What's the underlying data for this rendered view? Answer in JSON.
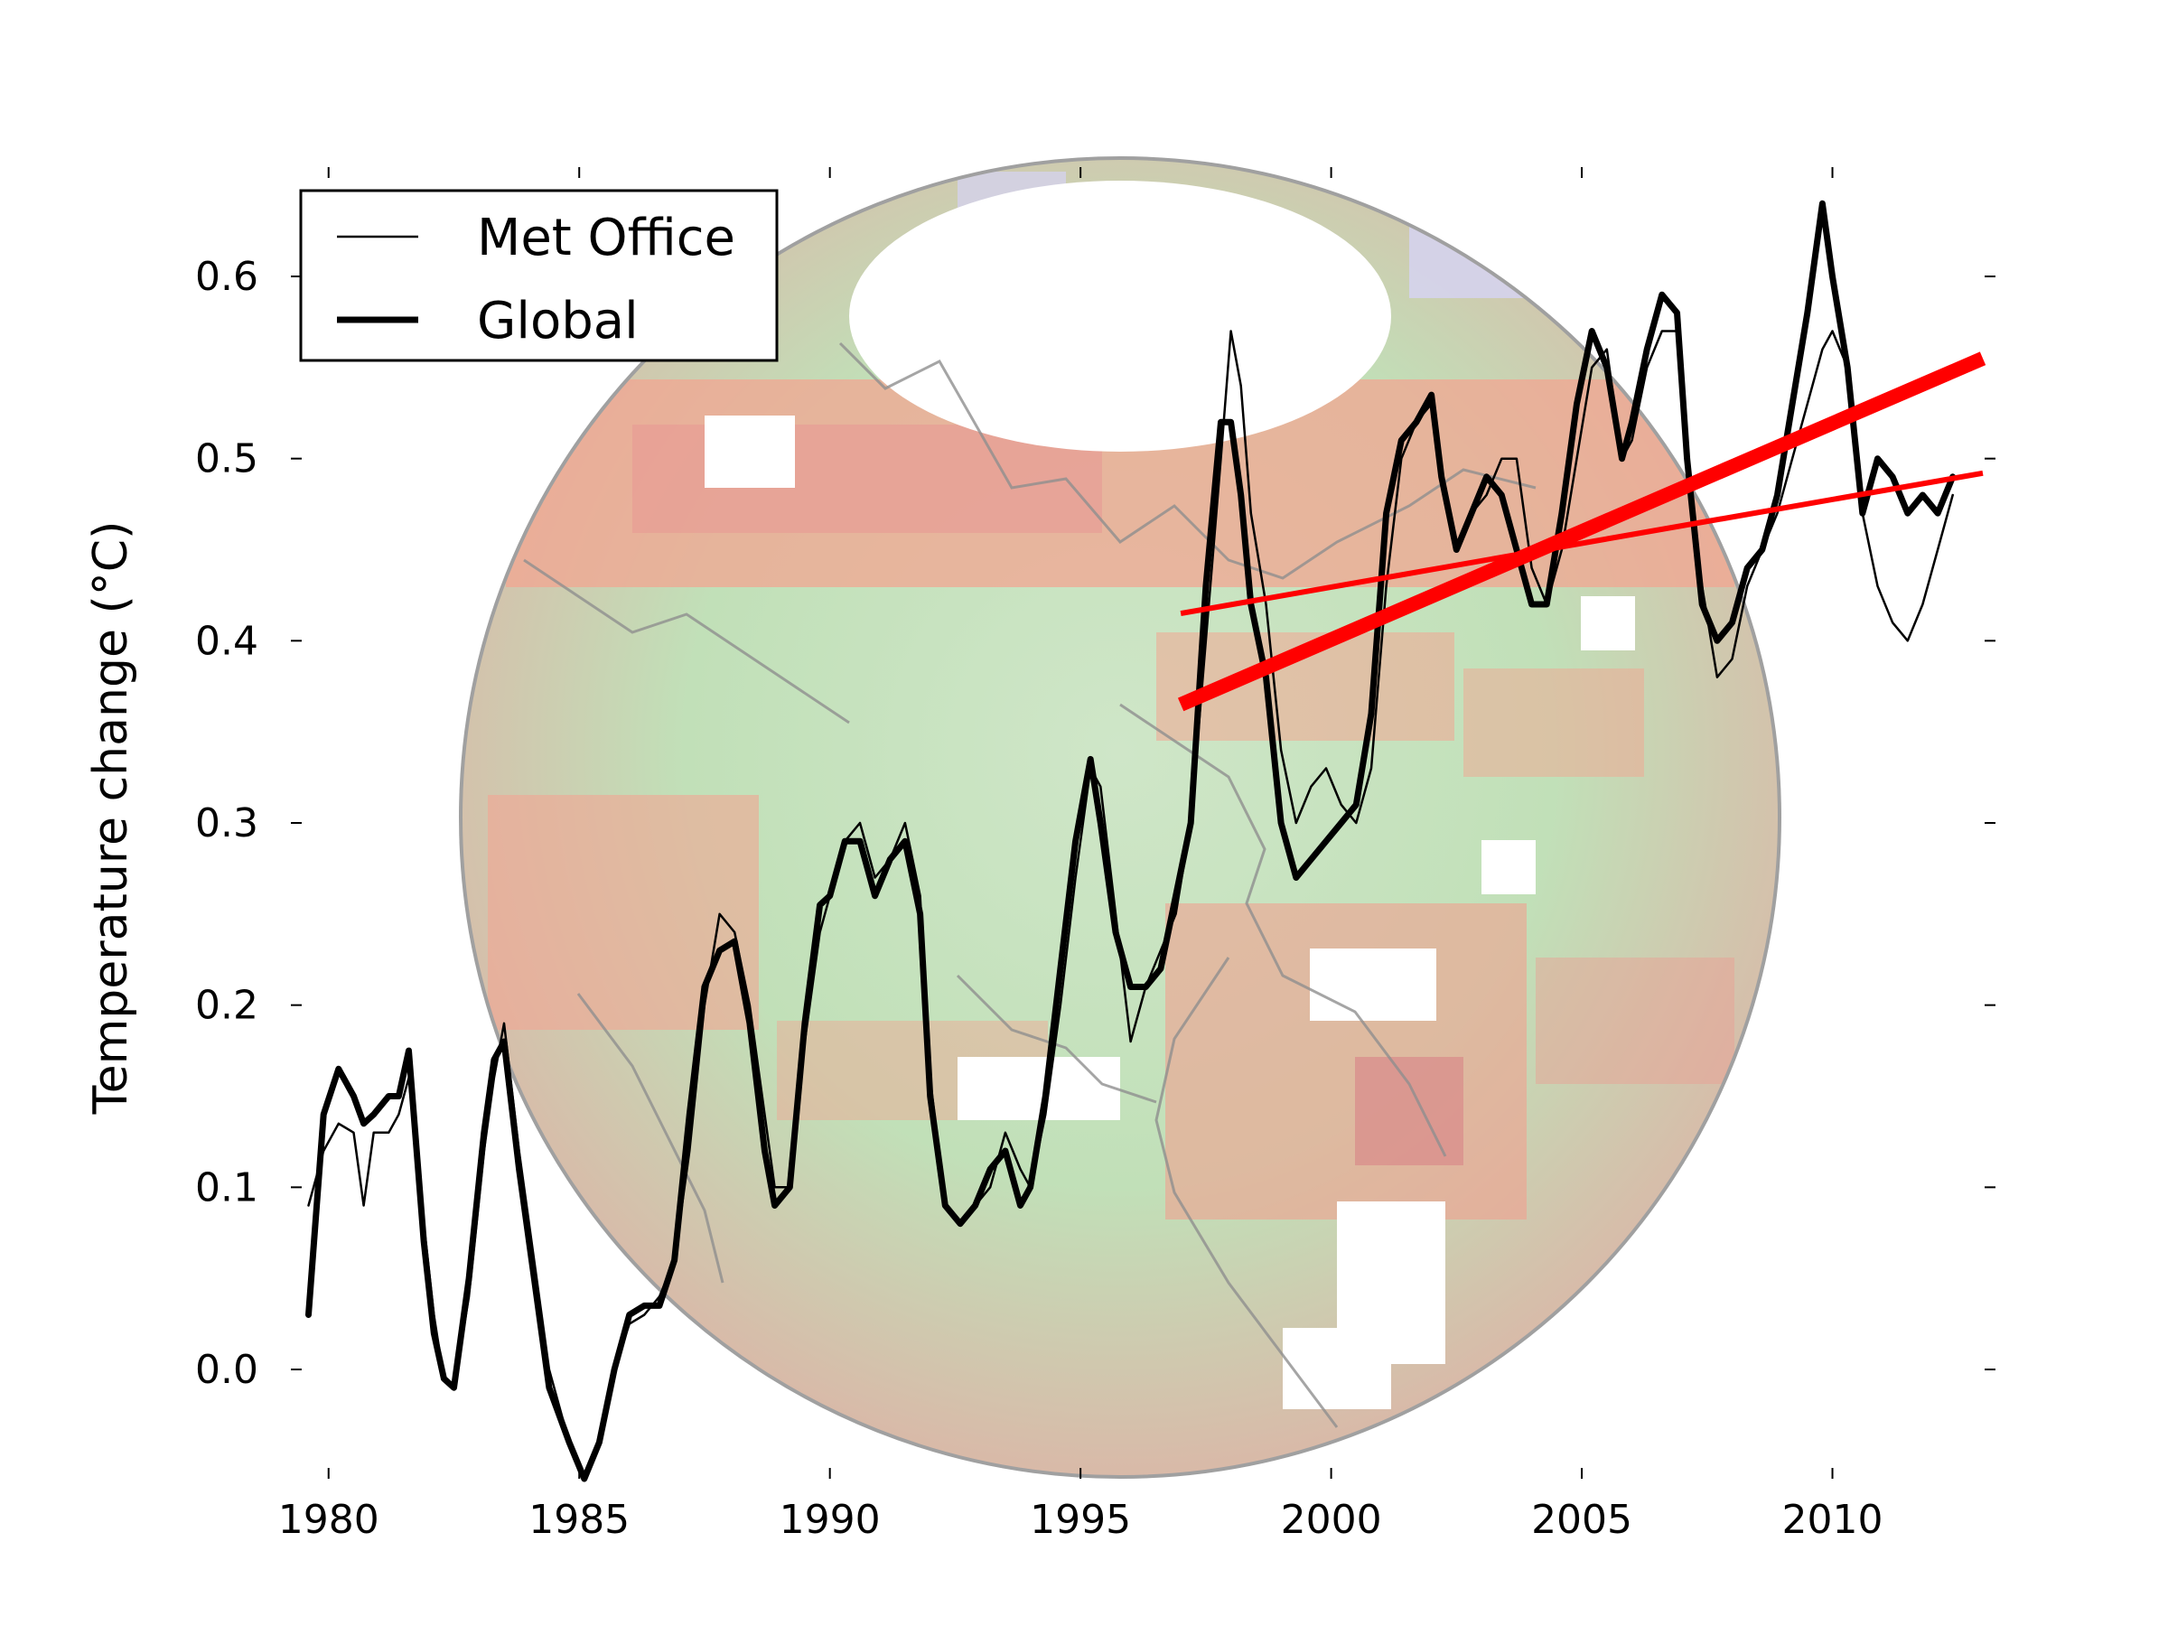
{
  "chart_data": {
    "type": "line",
    "title": "",
    "xlabel": "",
    "ylabel": "Temperature change (°C)",
    "xlim": [
      1979.5,
      2013.0
    ],
    "ylim": [
      -0.06,
      0.66
    ],
    "xticks": [
      1980,
      1985,
      1990,
      1995,
      2000,
      2005,
      2010
    ],
    "yticks": [
      0.0,
      0.1,
      0.2,
      0.3,
      0.4,
      0.5,
      0.6
    ],
    "ytick_labels": [
      "0.0",
      "0.1",
      "0.2",
      "0.3",
      "0.4",
      "0.5",
      "0.6"
    ],
    "legend": {
      "placement": "top-left",
      "entries": [
        "Met Office",
        "Global"
      ]
    },
    "background": "globe map of temperature anomalies (red = warmer, green = cooler)",
    "series": [
      {
        "name": "Met Office",
        "style": "thin",
        "color": "#000000",
        "x": [
          1979.6,
          1979.9,
          1980.2,
          1980.5,
          1980.7,
          1980.9,
          1981.2,
          1981.4,
          1981.6,
          1981.9,
          1982.1,
          1982.3,
          1982.5,
          1982.8,
          1983.1,
          1983.3,
          1983.5,
          1983.8,
          1984.1,
          1984.4,
          1984.8,
          1985.1,
          1985.4,
          1985.7,
          1986.0,
          1986.3,
          1986.6,
          1986.9,
          1987.2,
          1987.5,
          1987.8,
          1988.1,
          1988.4,
          1988.7,
          1988.9,
          1989.2,
          1989.5,
          1989.8,
          1990.0,
          1990.3,
          1990.6,
          1990.9,
          1991.2,
          1991.5,
          1991.8,
          1992.0,
          1992.3,
          1992.6,
          1992.9,
          1993.2,
          1993.5,
          1993.8,
          1994.0,
          1994.3,
          1994.6,
          1994.9,
          1995.2,
          1995.4,
          1995.7,
          1996.0,
          1996.3,
          1996.6,
          1996.9,
          1997.2,
          1997.5,
          1997.8,
          1998.0,
          1998.2,
          1998.4,
          1998.7,
          1999.0,
          1999.3,
          1999.6,
          1999.9,
          2000.2,
          2000.5,
          2000.8,
          2001.1,
          2001.4,
          2001.7,
          2002.0,
          2002.2,
          2002.5,
          2002.8,
          2003.1,
          2003.4,
          2003.7,
          2004.0,
          2004.3,
          2004.6,
          2004.9,
          2005.2,
          2005.5,
          2005.8,
          2006.0,
          2006.3,
          2006.6,
          2006.9,
          2007.1,
          2007.4,
          2007.7,
          2008.0,
          2008.3,
          2008.6,
          2008.9,
          2009.2,
          2009.5,
          2009.8,
          2010.0,
          2010.3,
          2010.6,
          2010.9,
          2011.2,
          2011.5,
          2011.8,
          2012.1,
          2012.4
        ],
        "y": [
          0.09,
          0.12,
          0.135,
          0.13,
          0.09,
          0.13,
          0.13,
          0.14,
          0.16,
          0.08,
          0.03,
          -0.005,
          -0.01,
          0.04,
          0.12,
          0.16,
          0.19,
          0.12,
          0.06,
          0.0,
          -0.04,
          -0.06,
          -0.04,
          0.0,
          0.025,
          0.03,
          0.04,
          0.06,
          0.12,
          0.2,
          0.25,
          0.24,
          0.2,
          0.14,
          0.1,
          0.1,
          0.18,
          0.24,
          0.26,
          0.29,
          0.3,
          0.27,
          0.28,
          0.3,
          0.26,
          0.16,
          0.09,
          0.08,
          0.09,
          0.1,
          0.13,
          0.11,
          0.1,
          0.14,
          0.2,
          0.27,
          0.33,
          0.32,
          0.25,
          0.18,
          0.21,
          0.23,
          0.25,
          0.3,
          0.4,
          0.5,
          0.57,
          0.54,
          0.47,
          0.42,
          0.34,
          0.3,
          0.32,
          0.33,
          0.31,
          0.3,
          0.33,
          0.43,
          0.5,
          0.52,
          0.53,
          0.49,
          0.45,
          0.47,
          0.48,
          0.5,
          0.5,
          0.44,
          0.42,
          0.45,
          0.5,
          0.55,
          0.56,
          0.5,
          0.51,
          0.55,
          0.57,
          0.57,
          0.5,
          0.43,
          0.38,
          0.39,
          0.43,
          0.45,
          0.47,
          0.5,
          0.53,
          0.56,
          0.57,
          0.55,
          0.47,
          0.43,
          0.41,
          0.4,
          0.42,
          0.45,
          0.48
        ]
      },
      {
        "name": "Global",
        "style": "thick",
        "color": "#000000",
        "x": [
          1979.6,
          1979.9,
          1980.2,
          1980.5,
          1980.7,
          1980.9,
          1981.2,
          1981.4,
          1981.6,
          1981.9,
          1982.1,
          1982.3,
          1982.5,
          1982.8,
          1983.1,
          1983.3,
          1983.5,
          1983.8,
          1984.1,
          1984.4,
          1984.8,
          1985.1,
          1985.4,
          1985.7,
          1986.0,
          1986.3,
          1986.6,
          1986.9,
          1987.2,
          1987.5,
          1987.8,
          1988.1,
          1988.4,
          1988.7,
          1988.9,
          1989.2,
          1989.5,
          1989.8,
          1990.0,
          1990.3,
          1990.6,
          1990.9,
          1991.2,
          1991.5,
          1991.8,
          1992.0,
          1992.3,
          1992.6,
          1992.9,
          1993.2,
          1993.5,
          1993.8,
          1994.0,
          1994.3,
          1994.6,
          1994.9,
          1995.2,
          1995.4,
          1995.7,
          1996.0,
          1996.3,
          1996.6,
          1996.9,
          1997.2,
          1997.5,
          1997.8,
          1998.0,
          1998.2,
          1998.4,
          1998.7,
          1999.0,
          1999.3,
          1999.6,
          1999.9,
          2000.2,
          2000.5,
          2000.8,
          2001.1,
          2001.4,
          2001.7,
          2002.0,
          2002.2,
          2002.5,
          2002.8,
          2003.1,
          2003.4,
          2003.7,
          2004.0,
          2004.3,
          2004.6,
          2004.9,
          2005.2,
          2005.5,
          2005.8,
          2006.0,
          2006.3,
          2006.6,
          2006.9,
          2007.1,
          2007.4,
          2007.7,
          2008.0,
          2008.3,
          2008.6,
          2008.9,
          2009.2,
          2009.5,
          2009.8,
          2010.0,
          2010.3,
          2010.6,
          2010.9,
          2011.2,
          2011.5,
          2011.8,
          2012.1,
          2012.4
        ],
        "y": [
          0.03,
          0.14,
          0.165,
          0.15,
          0.135,
          0.14,
          0.15,
          0.15,
          0.175,
          0.07,
          0.02,
          -0.005,
          -0.01,
          0.05,
          0.13,
          0.17,
          0.18,
          0.11,
          0.05,
          -0.01,
          -0.04,
          -0.06,
          -0.04,
          0.0,
          0.03,
          0.035,
          0.035,
          0.06,
          0.14,
          0.21,
          0.23,
          0.235,
          0.19,
          0.12,
          0.09,
          0.1,
          0.19,
          0.255,
          0.26,
          0.29,
          0.29,
          0.26,
          0.28,
          0.29,
          0.25,
          0.15,
          0.09,
          0.08,
          0.09,
          0.11,
          0.12,
          0.09,
          0.1,
          0.15,
          0.22,
          0.29,
          0.335,
          0.3,
          0.24,
          0.21,
          0.21,
          0.22,
          0.26,
          0.3,
          0.43,
          0.52,
          0.52,
          0.48,
          0.42,
          0.38,
          0.3,
          0.27,
          0.28,
          0.29,
          0.3,
          0.31,
          0.36,
          0.47,
          0.51,
          0.52,
          0.535,
          0.49,
          0.45,
          0.47,
          0.49,
          0.48,
          0.45,
          0.42,
          0.42,
          0.47,
          0.53,
          0.57,
          0.55,
          0.5,
          0.52,
          0.56,
          0.59,
          0.58,
          0.5,
          0.42,
          0.4,
          0.41,
          0.44,
          0.45,
          0.48,
          0.53,
          0.58,
          0.64,
          0.6,
          0.55,
          0.47,
          0.5,
          0.49,
          0.47,
          0.48,
          0.47,
          0.49
        ]
      }
    ],
    "trend_lines": [
      {
        "name": "Global trend",
        "style": "thick",
        "color": "#ff0000",
        "x": [
          1997.0,
          2013.0
        ],
        "y": [
          0.365,
          0.555
        ]
      },
      {
        "name": "Met Office trend",
        "style": "thin",
        "color": "#ff0000",
        "x": [
          1997.0,
          2013.0
        ],
        "y": [
          0.415,
          0.492
        ]
      }
    ]
  }
}
